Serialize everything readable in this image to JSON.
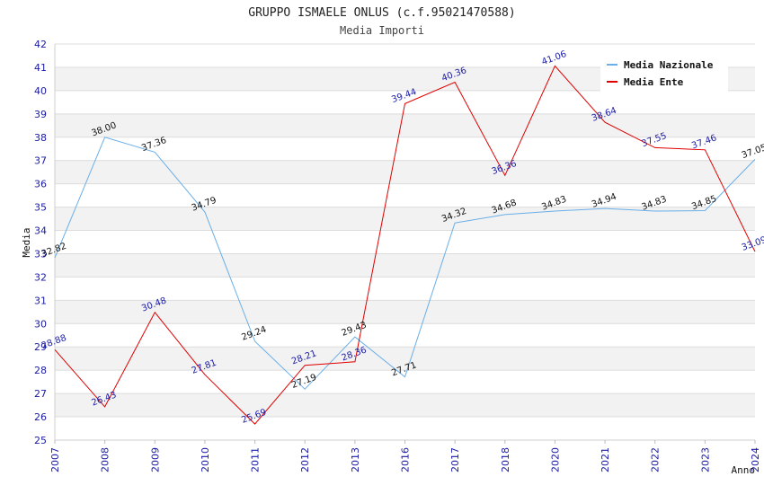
{
  "chart_data": {
    "type": "line",
    "title": "GRUPPO ISMAELE ONLUS (c.f.95021470588)",
    "subtitle": "Media Importi",
    "xlabel": "Anno",
    "ylabel": "Media",
    "ylim": [
      25,
      42
    ],
    "yticks": [
      "25",
      "26",
      "27",
      "28",
      "29",
      "30",
      "31",
      "32",
      "33",
      "34",
      "35",
      "36",
      "37",
      "38",
      "39",
      "40",
      "41",
      "42"
    ],
    "categories": [
      "2007",
      "2008",
      "2009",
      "2010",
      "2011",
      "2012",
      "2013",
      "2016",
      "2017",
      "2018",
      "2020",
      "2021",
      "2022",
      "2023",
      "2024"
    ],
    "legend_position": "top-right",
    "series": [
      {
        "name": "Media Nazionale",
        "color": "#6aaee8",
        "values": [
          32.82,
          38.0,
          37.36,
          34.79,
          29.24,
          27.19,
          29.43,
          27.71,
          34.32,
          34.68,
          34.83,
          34.94,
          34.83,
          34.85,
          37.05
        ],
        "labels": [
          "32.82",
          "38.00",
          "37.36",
          "34.79",
          "29.24",
          "27.19",
          "29.43",
          "27.71",
          "34.32",
          "34.68",
          "34.83",
          "34.94",
          "34.83",
          "34.85",
          "37.05"
        ]
      },
      {
        "name": "Media Ente",
        "color": "#e00000",
        "values": [
          28.88,
          26.43,
          30.48,
          27.81,
          25.69,
          28.21,
          28.36,
          39.44,
          40.36,
          36.36,
          41.06,
          38.64,
          37.55,
          37.46,
          33.09
        ],
        "labels": [
          "28.88",
          "26.43",
          "30.48",
          "27.81",
          "25.69",
          "28.21",
          "28.36",
          "39.44",
          "40.36",
          "36.36",
          "41.06",
          "38.64",
          "37.55",
          "37.46",
          "33.09"
        ]
      }
    ]
  }
}
